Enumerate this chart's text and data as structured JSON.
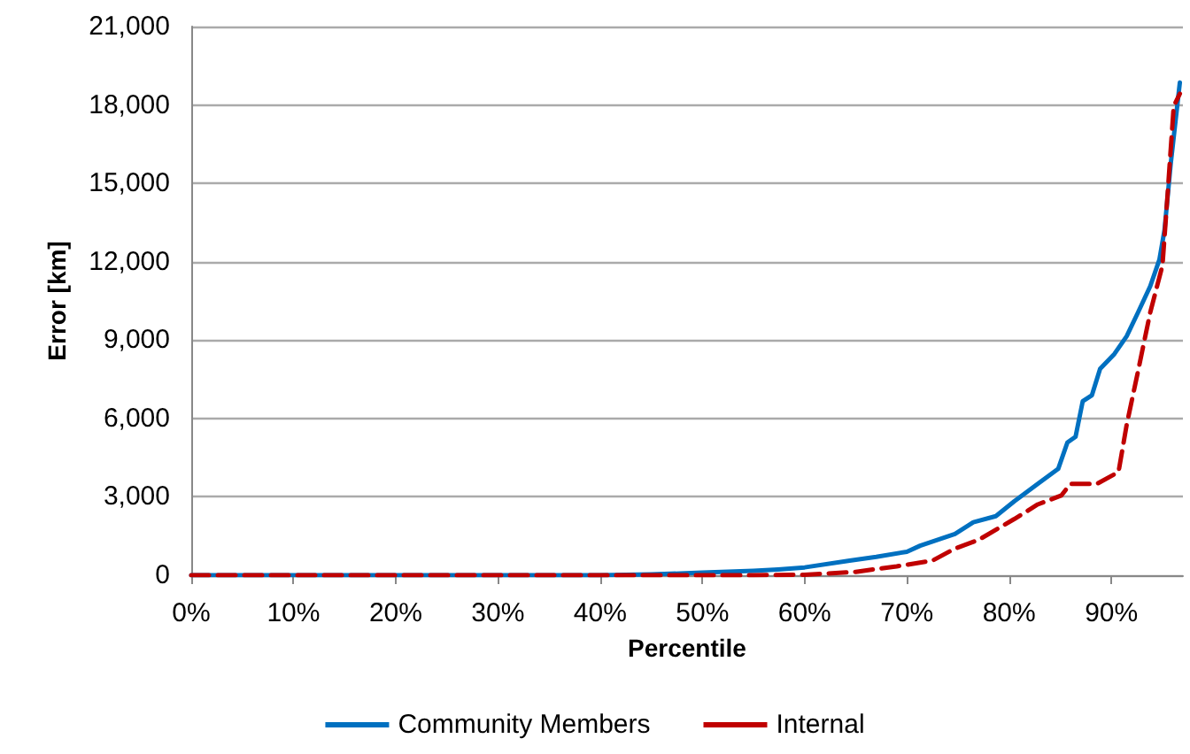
{
  "chart_data": {
    "type": "line",
    "xlabel": "Percentile",
    "ylabel": "Error [km]",
    "xlim": [
      0,
      97
    ],
    "xticks": [
      {
        "value": 0,
        "label": "0%"
      },
      {
        "value": 10,
        "label": "10%"
      },
      {
        "value": 20,
        "label": "20%"
      },
      {
        "value": 30,
        "label": "30%"
      },
      {
        "value": 40,
        "label": "40%"
      },
      {
        "value": 50,
        "label": "50%"
      },
      {
        "value": 60,
        "label": "60%"
      },
      {
        "value": 70,
        "label": "70%"
      },
      {
        "value": 80,
        "label": "80%"
      },
      {
        "value": 90,
        "label": "90%"
      }
    ],
    "ylim": [
      0,
      21000
    ],
    "yticks": [
      {
        "value": 0,
        "label": "0"
      },
      {
        "value": 3000,
        "label": "3,000"
      },
      {
        "value": 6000,
        "label": "6,000"
      },
      {
        "value": 9000,
        "label": "9,000"
      },
      {
        "value": 12000,
        "label": "12,000"
      },
      {
        "value": 15000,
        "label": "15,000"
      },
      {
        "value": 18000,
        "label": "18,000"
      },
      {
        "value": 21000,
        "label": "21,000"
      }
    ],
    "grid": "y",
    "legend": "bottom",
    "marker": "none",
    "series": [
      {
        "name": "Community Members",
        "color": "#0070c0",
        "line_style": "solid",
        "x": [
          0,
          40,
          45,
          50,
          55,
          57.4,
          60,
          64.4,
          67,
          70,
          71.3,
          74.7,
          76.5,
          78.7,
          80.5,
          82.8,
          84.8,
          85.7,
          86.5,
          87.2,
          88.1,
          88.9,
          90.3,
          91.5,
          92.6,
          93.8,
          94.7,
          95.2,
          95.8,
          96.7
        ],
        "values": [
          0,
          0,
          30,
          100,
          170,
          224,
          300,
          560,
          700,
          900,
          1130,
          1580,
          2030,
          2260,
          2830,
          3500,
          4070,
          5080,
          5300,
          6660,
          6890,
          7900,
          8470,
          9150,
          10050,
          11060,
          12080,
          13210,
          15720,
          18860
        ]
      },
      {
        "name": "Internal",
        "color": "#c00000",
        "line_style": "dashed",
        "x": [
          0,
          55,
          60,
          65,
          69,
          72.5,
          74.7,
          77,
          80.5,
          82.8,
          85.1,
          86,
          88.6,
          90.7,
          91.5,
          92.6,
          93.8,
          95,
          95.5,
          96.1,
          96.7
        ],
        "values": [
          0,
          0,
          20,
          130,
          340,
          560,
          1020,
          1350,
          2150,
          2710,
          3050,
          3500,
          3500,
          3950,
          5760,
          7790,
          10050,
          11860,
          14570,
          17950,
          18430
        ]
      }
    ]
  }
}
